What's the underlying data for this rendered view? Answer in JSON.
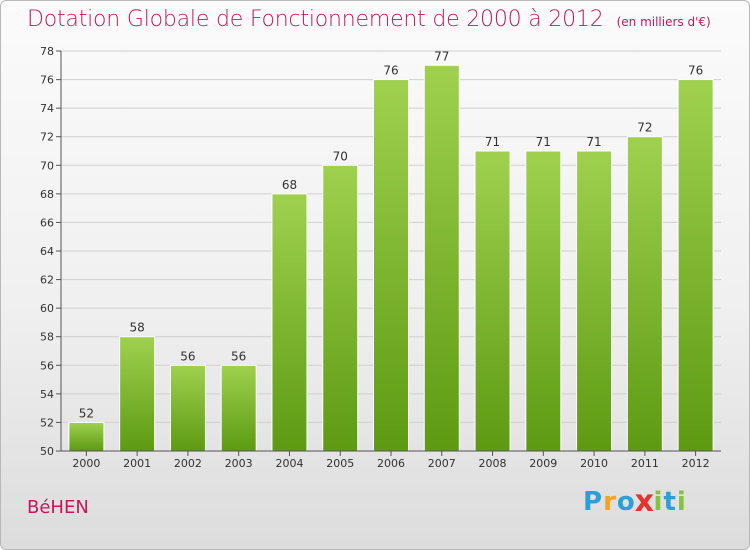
{
  "title": "Dotation Globale de Fonctionnement de 2000 à 2012",
  "unit_note": "(en milliers d'€)",
  "commune": "BéHEN",
  "logo": {
    "text": "Proxiti",
    "letters": [
      "P",
      "r",
      "o",
      "x",
      "i",
      "t",
      "i"
    ],
    "colors": [
      "#2aa0d8",
      "#f7a21b",
      "#2aa0d8",
      "#e8312c",
      "#83c341",
      "#2aa0d8",
      "#83c341"
    ]
  },
  "colors": {
    "title": "#c2185b",
    "bar_top": "#9fd14f",
    "bar_bottom": "#5d9a12",
    "grid": "#d0d0d0"
  },
  "chart_data": {
    "type": "bar",
    "title": "Dotation Globale de Fonctionnement de 2000 à 2012",
    "xlabel": "",
    "ylabel": "",
    "categories": [
      "2000",
      "2001",
      "2002",
      "2003",
      "2004",
      "2005",
      "2006",
      "2007",
      "2008",
      "2009",
      "2010",
      "2011",
      "2012"
    ],
    "values": [
      52,
      58,
      56,
      56,
      68,
      70,
      76,
      77,
      71,
      71,
      71,
      72,
      76
    ],
    "ylim": [
      50,
      78
    ],
    "yticks": [
      50,
      52,
      54,
      56,
      58,
      60,
      62,
      64,
      66,
      68,
      70,
      72,
      74,
      76,
      78
    ],
    "grid": true,
    "data_labels": true
  }
}
